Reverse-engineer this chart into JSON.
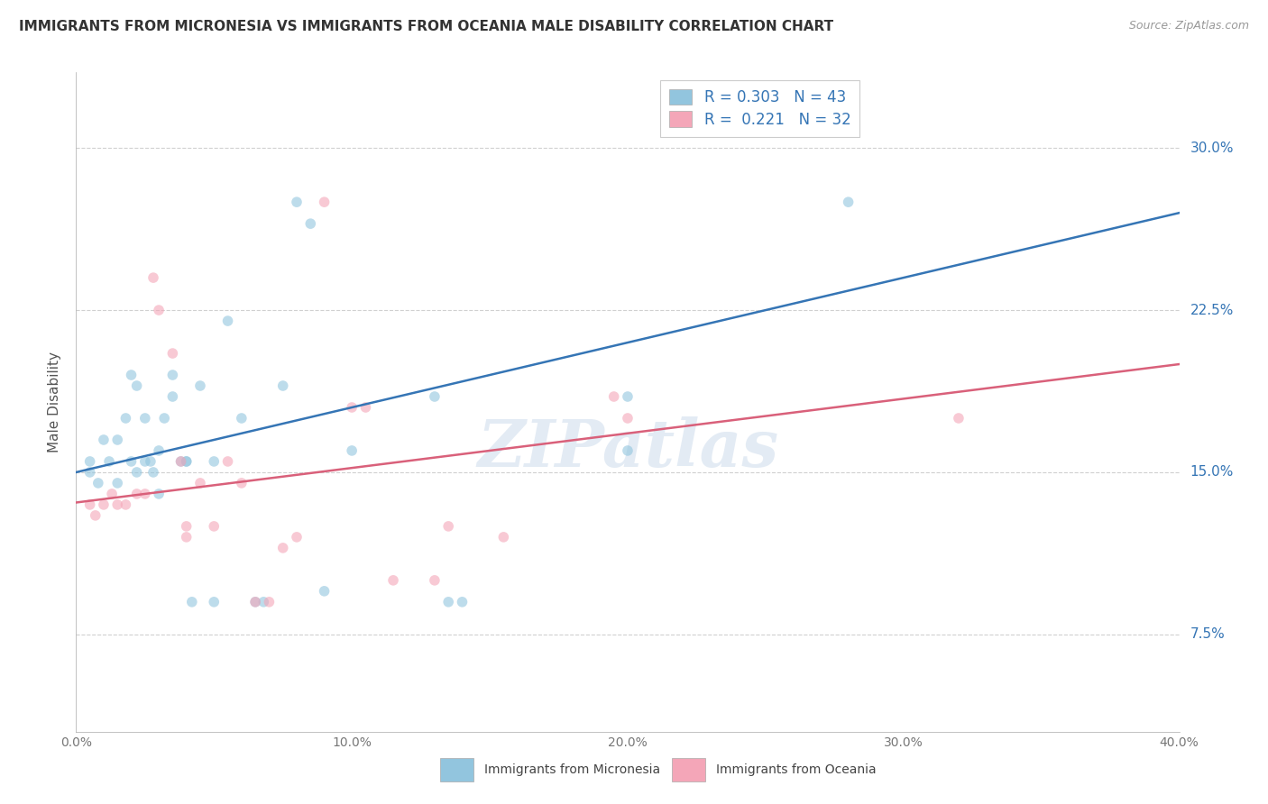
{
  "title": "IMMIGRANTS FROM MICRONESIA VS IMMIGRANTS FROM OCEANIA MALE DISABILITY CORRELATION CHART",
  "source": "Source: ZipAtlas.com",
  "ylabel": "Male Disability",
  "yticks": [
    "7.5%",
    "15.0%",
    "22.5%",
    "30.0%"
  ],
  "ytick_vals": [
    0.075,
    0.15,
    0.225,
    0.3
  ],
  "xlim": [
    0.0,
    0.4
  ],
  "ylim": [
    0.03,
    0.335
  ],
  "watermark": "ZIPatlas",
  "legend_r1_label": "R = 0.303",
  "legend_n1_label": "N = 43",
  "legend_r2_label": "R =  0.221",
  "legend_n2_label": "N = 32",
  "blue_scatter_color": "#92c5de",
  "pink_scatter_color": "#f4a6b8",
  "blue_line_color": "#3575b5",
  "pink_line_color": "#d9607a",
  "blue_line_x": [
    0.0,
    0.4
  ],
  "blue_line_y": [
    0.15,
    0.27
  ],
  "pink_line_x": [
    0.0,
    0.4
  ],
  "pink_line_y": [
    0.136,
    0.2
  ],
  "micronesia_x": [
    0.005,
    0.01,
    0.012,
    0.015,
    0.018,
    0.02,
    0.02,
    0.022,
    0.025,
    0.025,
    0.027,
    0.028,
    0.03,
    0.03,
    0.032,
    0.035,
    0.035,
    0.038,
    0.04,
    0.04,
    0.042,
    0.045,
    0.05,
    0.05,
    0.055,
    0.06,
    0.065,
    0.068,
    0.075,
    0.08,
    0.085,
    0.09,
    0.1,
    0.13,
    0.135,
    0.14,
    0.2,
    0.2,
    0.28,
    0.005,
    0.008,
    0.015,
    0.022
  ],
  "micronesia_y": [
    0.155,
    0.165,
    0.155,
    0.165,
    0.175,
    0.195,
    0.155,
    0.15,
    0.175,
    0.155,
    0.155,
    0.15,
    0.16,
    0.14,
    0.175,
    0.195,
    0.185,
    0.155,
    0.155,
    0.155,
    0.09,
    0.19,
    0.155,
    0.09,
    0.22,
    0.175,
    0.09,
    0.09,
    0.19,
    0.275,
    0.265,
    0.095,
    0.16,
    0.185,
    0.09,
    0.09,
    0.185,
    0.16,
    0.275,
    0.15,
    0.145,
    0.145,
    0.19
  ],
  "oceania_x": [
    0.005,
    0.007,
    0.01,
    0.013,
    0.015,
    0.018,
    0.022,
    0.025,
    0.028,
    0.03,
    0.035,
    0.038,
    0.04,
    0.045,
    0.05,
    0.055,
    0.06,
    0.065,
    0.07,
    0.075,
    0.08,
    0.09,
    0.1,
    0.105,
    0.115,
    0.13,
    0.135,
    0.155,
    0.195,
    0.2,
    0.32,
    0.04
  ],
  "oceania_y": [
    0.135,
    0.13,
    0.135,
    0.14,
    0.135,
    0.135,
    0.14,
    0.14,
    0.24,
    0.225,
    0.205,
    0.155,
    0.125,
    0.145,
    0.125,
    0.155,
    0.145,
    0.09,
    0.09,
    0.115,
    0.12,
    0.275,
    0.18,
    0.18,
    0.1,
    0.1,
    0.125,
    0.12,
    0.185,
    0.175,
    0.175,
    0.12
  ],
  "marker_size": 70,
  "marker_alpha": 0.6,
  "bg_color": "#ffffff",
  "grid_color": "#d0d0d0",
  "text_color": "#333333",
  "axis_label_color": "#555555",
  "tick_color": "#777777"
}
